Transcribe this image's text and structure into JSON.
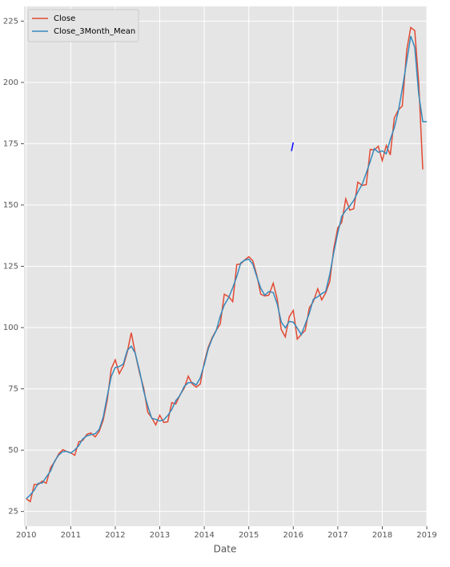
{
  "chart_data": {
    "type": "line",
    "x_label": "Date",
    "xlim": [
      2009.95,
      2019.0
    ],
    "xticks": [
      2010,
      2011,
      2012,
      2013,
      2014,
      2015,
      2016,
      2017,
      2018,
      2019
    ],
    "ylim": [
      19,
      231
    ],
    "yticks": [
      25,
      50,
      75,
      100,
      125,
      150,
      175,
      200,
      225
    ],
    "grid": true,
    "legend": "upper left",
    "series": [
      {
        "name": "Close",
        "color": "#e24a33",
        "x": [
          2010.0,
          2010.09,
          2010.18,
          2010.27,
          2010.36,
          2010.45,
          2010.55,
          2010.64,
          2010.73,
          2010.82,
          2010.91,
          2011.0,
          2011.09,
          2011.18,
          2011.27,
          2011.36,
          2011.45,
          2011.55,
          2011.64,
          2011.73,
          2011.82,
          2011.91,
          2012.0,
          2012.09,
          2012.18,
          2012.27,
          2012.36,
          2012.45,
          2012.55,
          2012.64,
          2012.73,
          2012.82,
          2012.91,
          2013.0,
          2013.09,
          2013.18,
          2013.27,
          2013.36,
          2013.45,
          2013.55,
          2013.64,
          2013.73,
          2013.82,
          2013.91,
          2014.0,
          2014.09,
          2014.18,
          2014.27,
          2014.36,
          2014.45,
          2014.55,
          2014.64,
          2014.73,
          2014.82,
          2014.91,
          2015.0,
          2015.09,
          2015.18,
          2015.27,
          2015.36,
          2015.45,
          2015.55,
          2015.64,
          2015.73,
          2015.82,
          2015.91,
          2016.0,
          2016.09,
          2016.18,
          2016.27,
          2016.36,
          2016.45,
          2016.55,
          2016.64,
          2016.73,
          2016.82,
          2016.91,
          2017.0,
          2017.09,
          2017.18,
          2017.27,
          2017.36,
          2017.45,
          2017.55,
          2017.64,
          2017.73,
          2017.82,
          2017.91,
          2018.0,
          2018.09,
          2018.18,
          2018.27,
          2018.36,
          2018.45,
          2018.55,
          2018.64,
          2018.73,
          2018.82,
          2018.91
        ],
        "values": [
          30.2,
          29,
          36,
          36,
          37.4,
          36.5,
          43,
          45.3,
          48.5,
          50.2,
          49.5,
          48.9,
          47.9,
          53.4,
          54,
          56.4,
          57,
          55.4,
          57.7,
          62.3,
          70.4,
          83.2,
          86.8,
          81.2,
          84.2,
          90,
          97.9,
          89.4,
          81.2,
          75.3,
          65.5,
          63.2,
          60.3,
          64.2,
          61.3,
          61.6,
          69.4,
          68.8,
          72.4,
          75.3,
          80.2,
          77,
          75.7,
          77,
          85.8,
          92,
          96,
          98.9,
          101.5,
          113.6,
          112.6,
          110.6,
          125.7,
          126,
          127.6,
          128.9,
          127.3,
          121.4,
          113.6,
          112.9,
          113.2,
          118.1,
          111.6,
          99.2,
          96.2,
          104.4,
          107,
          95.3,
          97.2,
          98.9,
          108,
          110.6,
          115.8,
          111.3,
          114.2,
          118.8,
          132.2,
          140.7,
          143,
          152.5,
          147.9,
          148.5,
          159.3,
          158,
          158.3,
          172.7,
          172.4,
          174,
          168.1,
          174.3,
          170.4,
          185.5,
          188.7,
          190.4,
          213.2,
          222.4,
          221.1,
          199.5,
          164.5
        ]
      },
      {
        "name": "Close_3Month_Mean",
        "color": "#348abd",
        "x": [
          2010.0,
          2010.09,
          2010.18,
          2010.27,
          2010.36,
          2010.45,
          2010.55,
          2010.64,
          2010.73,
          2010.82,
          2010.91,
          2011.0,
          2011.09,
          2011.18,
          2011.27,
          2011.36,
          2011.45,
          2011.55,
          2011.64,
          2011.73,
          2011.82,
          2011.91,
          2012.0,
          2012.09,
          2012.18,
          2012.27,
          2012.36,
          2012.45,
          2012.55,
          2012.64,
          2012.73,
          2012.82,
          2012.91,
          2013.0,
          2013.09,
          2013.18,
          2013.27,
          2013.36,
          2013.45,
          2013.55,
          2013.64,
          2013.73,
          2013.82,
          2013.91,
          2014.0,
          2014.09,
          2014.18,
          2014.27,
          2014.36,
          2014.45,
          2014.55,
          2014.64,
          2014.73,
          2014.82,
          2014.91,
          2015.0,
          2015.09,
          2015.18,
          2015.27,
          2015.36,
          2015.45,
          2015.55,
          2015.64,
          2015.73,
          2015.82,
          2015.91,
          2016.0,
          2016.09,
          2016.18,
          2016.27,
          2016.36,
          2016.45,
          2016.55,
          2016.64,
          2016.73,
          2016.82,
          2016.91,
          2017.0,
          2017.09,
          2017.18,
          2017.27,
          2017.36,
          2017.45,
          2017.55,
          2017.64,
          2017.73,
          2017.82,
          2017.91,
          2018.0,
          2018.09,
          2018.18,
          2018.27,
          2018.36,
          2018.45,
          2018.55,
          2018.64,
          2018.73,
          2018.82,
          2018.91,
          2019.0
        ],
        "values": [
          30.2,
          31.7,
          33.7,
          36.5,
          36.6,
          39.0,
          41.6,
          45.6,
          48.0,
          49.4,
          49.5,
          48.8,
          50.1,
          51.8,
          54.6,
          55.8,
          56.3,
          56.7,
          58.5,
          63.5,
          72.0,
          80.1,
          83.7,
          84.1,
          85.1,
          90.7,
          92.4,
          89.5,
          82.0,
          74.0,
          68.0,
          63.0,
          62.6,
          61.9,
          62.4,
          64.1,
          66.6,
          70.2,
          72.2,
          76.0,
          77.5,
          77.6,
          76.6,
          79.5,
          84.9,
          91.3,
          95.6,
          98.8,
          104.7,
          109.2,
          112.3,
          116.3,
          120.8,
          126.4,
          127.5,
          127.9,
          125.9,
          120.8,
          116.0,
          113.2,
          114.7,
          114.3,
          109.6,
          102.3,
          99.9,
          102.5,
          102.2,
          99.8,
          97.1,
          101.4,
          105.8,
          111.5,
          112.6,
          113.8,
          114.8,
          121.7,
          130.6,
          138.6,
          145.4,
          147.8,
          149.6,
          151.9,
          155.3,
          158.5,
          163.0,
          167.8,
          173.0,
          171.5,
          172.1,
          170.9,
          176.7,
          181.5,
          188.2,
          197.4,
          208.7,
          218.9,
          214.3,
          195.0,
          184,
          184
        ]
      },
      {
        "color": "#0000ff",
        "x": [
          2015.96,
          2016.0
        ],
        "values": [
          172,
          175.5
        ]
      }
    ]
  }
}
